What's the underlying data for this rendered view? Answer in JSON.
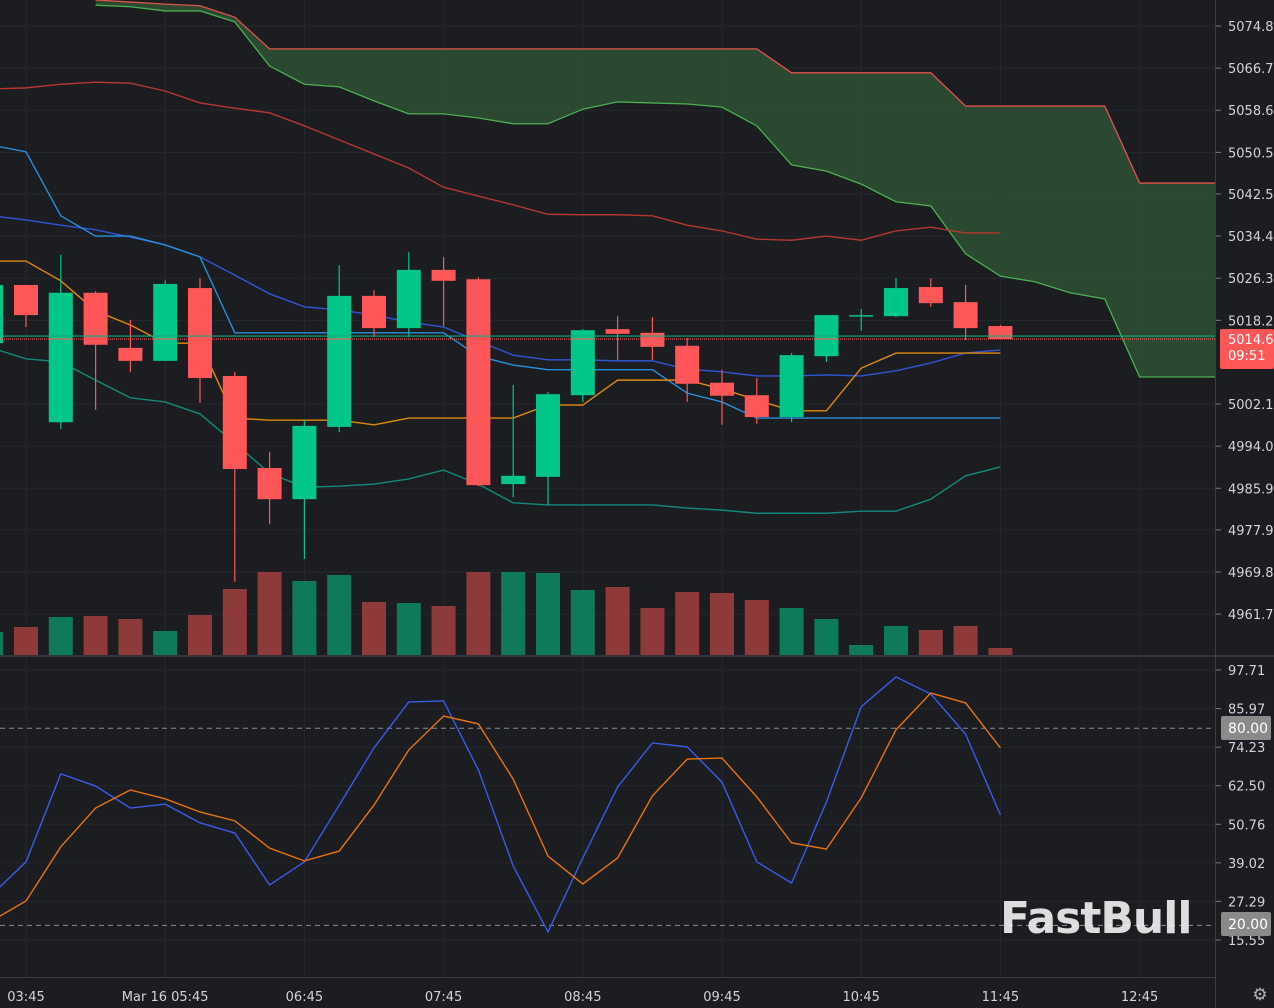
{
  "watermark": "FastBull",
  "settings_icon": "gear-icon",
  "colors": {
    "background": "#1c1d21",
    "up": "#00c787",
    "down": "#ff5757",
    "vol_up": "#0f7a5a",
    "vol_down": "#8f3a3a",
    "cloud": "#2e4f33",
    "stoch_k": "#3a5be8",
    "stoch_d": "#e8730f",
    "band_upper": "#b5372f",
    "band_lower": "#13897a",
    "band_mid": "#2e55d6",
    "kijun": "#2a8fdc",
    "tenkan": "#e08a0c"
  },
  "price_axis": {
    "ticks": [
      "5074.8",
      "5066.7",
      "5058.6",
      "5050.5",
      "5042.5",
      "5034.4",
      "5026.3",
      "5018.2",
      "5002.1",
      "4994.0",
      "4985.9",
      "4977.9",
      "4969.8",
      "4961.7"
    ],
    "tick_values": [
      5074.8,
      5066.7,
      5058.6,
      5050.5,
      5042.5,
      5034.4,
      5026.3,
      5018.2,
      5002.1,
      4994.0,
      4985.9,
      4977.9,
      4969.8,
      4961.7
    ],
    "current_price": "5014.6",
    "current_value": 5014.6,
    "countdown": "09:51"
  },
  "stoch_axis": {
    "ticks": [
      "97.71",
      "85.97",
      "74.23",
      "62.50",
      "50.76",
      "39.02",
      "27.29",
      "15.55"
    ],
    "tick_values": [
      97.71,
      85.97,
      74.23,
      62.5,
      50.76,
      39.02,
      27.29,
      15.55
    ],
    "upper_level": "80.00",
    "lower_level": "20.00"
  },
  "time_axis": [
    {
      "label": "03:45",
      "bar": 1
    },
    {
      "label": "Mar 16 05:45",
      "bar": 5
    },
    {
      "label": "06:45",
      "bar": 9
    },
    {
      "label": "07:45",
      "bar": 13
    },
    {
      "label": "08:45",
      "bar": 17
    },
    {
      "label": "09:45",
      "bar": 21
    },
    {
      "label": "10:45",
      "bar": 25
    },
    {
      "label": "11:45",
      "bar": 29
    },
    {
      "label": "12:45",
      "bar": 33
    }
  ],
  "chart_data": [
    {
      "type": "candlestick",
      "ohlc": [
        [
          5013.8,
          5025.9,
          5013.5,
          5025.0
        ],
        [
          5025.0,
          5025.0,
          5016.9,
          5019.2
        ],
        [
          4998.6,
          5030.8,
          4997.3,
          5023.5
        ],
        [
          5023.5,
          5023.8,
          5001.0,
          5013.5
        ],
        [
          5012.9,
          5018.3,
          5008.3,
          5010.4
        ],
        [
          5010.4,
          5025.9,
          5010.4,
          5025.2
        ],
        [
          5024.4,
          5026.3,
          5002.3,
          5007.1
        ],
        [
          5007.5,
          5008.3,
          4967.9,
          4989.6
        ],
        [
          4989.8,
          4992.9,
          4979.0,
          4983.8
        ],
        [
          4983.8,
          4999.0,
          4972.3,
          4997.9
        ],
        [
          4997.7,
          5028.8,
          4996.7,
          5022.9
        ],
        [
          5022.9,
          5024.0,
          5015.0,
          5016.7
        ],
        [
          5016.7,
          5031.3,
          5015.0,
          5027.9
        ],
        [
          5027.9,
          5030.4,
          5017.1,
          5025.8
        ],
        [
          5026.1,
          5026.5,
          4986.3,
          4986.5
        ],
        [
          4986.7,
          5005.8,
          4984.2,
          4988.3
        ],
        [
          4988.1,
          5004.4,
          4982.7,
          5004.0
        ],
        [
          5003.8,
          5016.5,
          5002.5,
          5016.3
        ],
        [
          5016.5,
          5019.0,
          5010.6,
          5015.6
        ],
        [
          5015.8,
          5018.8,
          5010.6,
          5013.1
        ],
        [
          5013.3,
          5014.8,
          5002.5,
          5006.0
        ],
        [
          5006.2,
          5008.7,
          4998.1,
          5003.7
        ],
        [
          5003.8,
          5007.1,
          4998.3,
          4999.6
        ],
        [
          4999.6,
          5011.9,
          4998.6,
          5011.5
        ],
        [
          5011.3,
          5019.2,
          5010.2,
          5019.2
        ],
        [
          5019.2,
          5020.4,
          5016.2,
          5019.2
        ],
        [
          5019.0,
          5026.3,
          5018.8,
          5024.4
        ],
        [
          5024.6,
          5026.3,
          5020.8,
          5021.5
        ],
        [
          5021.7,
          5025.0,
          5014.4,
          5016.7
        ],
        [
          5017.1,
          5017.3,
          5014.6,
          5014.6
        ]
      ],
      "volume_relative": [
        23,
        28,
        38,
        39,
        36,
        24,
        40,
        66,
        83,
        74,
        80,
        53,
        52,
        49,
        83,
        83,
        82,
        65,
        68,
        47,
        63,
        62,
        55,
        47,
        36,
        10,
        29,
        25,
        29,
        7
      ],
      "lines": {
        "band_upper": [
          5062.7,
          5062.9,
          5063.6,
          5064.0,
          5063.8,
          5062.3,
          5060.0,
          5059.0,
          5058.1,
          5055.6,
          5052.9,
          5050.2,
          5047.5,
          5043.8,
          5042.1,
          5040.4,
          5038.6,
          5038.5,
          5038.5,
          5038.3,
          5036.5,
          5035.4,
          5033.8,
          5033.6,
          5034.4,
          5033.6,
          5035.4,
          5036.1,
          5035.0,
          5035.0
        ],
        "band_lower": [
          5012.9,
          5010.8,
          5010.2,
          5006.7,
          5003.3,
          5002.5,
          5000.2,
          4994.6,
          4988.8,
          4986.1,
          4986.3,
          4986.7,
          4987.7,
          4989.4,
          4986.7,
          4983.1,
          4982.7,
          4982.7,
          4982.7,
          4982.7,
          4982.1,
          4981.7,
          4981.1,
          4981.1,
          4981.1,
          4981.5,
          4981.5,
          4983.8,
          4988.3,
          4990.0
        ],
        "band_mid": [
          5038.3,
          5037.5,
          5036.5,
          5035.6,
          5034.2,
          5032.7,
          5030.4,
          5026.9,
          5023.3,
          5020.8,
          5020.2,
          5019.2,
          5017.9,
          5016.9,
          5014.2,
          5011.5,
          5010.6,
          5010.6,
          5010.4,
          5010.4,
          5008.8,
          5008.3,
          5007.5,
          5007.5,
          5007.7,
          5007.5,
          5008.5,
          5010.0,
          5011.9,
          5012.5
        ],
        "kijun": [
          5051.9,
          5050.6,
          5038.3,
          5034.4,
          5034.4,
          5032.7,
          5030.4,
          5015.8,
          5015.8,
          5015.8,
          5015.8,
          5015.8,
          5015.8,
          5015.8,
          5011.3,
          5009.6,
          5008.7,
          5008.7,
          5008.7,
          5008.7,
          5004.2,
          5002.5,
          4999.4,
          4999.4,
          4999.4,
          4999.4,
          4999.4,
          4999.4,
          4999.4,
          4999.4
        ],
        "tenkan": [
          5029.6,
          5029.6,
          5025.8,
          5020.0,
          5017.3,
          5013.8,
          5013.8,
          4999.4,
          4999.0,
          4999.0,
          4999.0,
          4998.1,
          4999.4,
          4999.4,
          4999.4,
          4999.4,
          5001.9,
          5001.9,
          5006.7,
          5006.7,
          5006.7,
          5005.0,
          5002.9,
          5000.8,
          5000.8,
          5009.0,
          5011.9,
          5011.9,
          5011.9,
          5011.9
        ]
      },
      "cloud": {
        "start_bar": 3,
        "span_a": [
          5078.8,
          5078.5,
          5077.7,
          5077.7,
          5075.6,
          5067.1,
          5063.6,
          5063.1,
          5060.4,
          5057.9,
          5057.9,
          5057.1,
          5056.0,
          5056.0,
          5058.8,
          5060.2,
          5060.0,
          5059.8,
          5059.2,
          5055.6,
          5048.1,
          5046.9,
          5044.4,
          5041.0,
          5040.2,
          5031.0,
          5026.7,
          5025.6,
          5023.5,
          5022.3,
          5007.3,
          5007.3,
          5007.3
        ],
        "span_b": [
          5079.8,
          5079.4,
          5079.0,
          5078.7,
          5076.5,
          5070.4,
          5070.4,
          5070.4,
          5070.4,
          5070.4,
          5070.4,
          5070.4,
          5070.4,
          5070.4,
          5070.4,
          5070.4,
          5070.4,
          5070.4,
          5070.4,
          5070.4,
          5065.8,
          5065.8,
          5065.8,
          5065.8,
          5065.8,
          5059.4,
          5059.4,
          5059.4,
          5059.4,
          5059.4,
          5044.6,
          5044.6,
          5044.6
        ]
      },
      "ylim": [
        4958,
        5080
      ]
    },
    {
      "type": "line",
      "series": [
        {
          "key": "k",
          "values": [
            29.2,
            39.3,
            66.1,
            62.4,
            55.7,
            56.9,
            51.2,
            48.1,
            32.3,
            39.3,
            56.6,
            74.0,
            88.0,
            88.3,
            67.3,
            38.1,
            18.0,
            40.5,
            62.1,
            75.5,
            74.3,
            63.6,
            39.3,
            32.9,
            57.5,
            86.5,
            95.6,
            90.4,
            78.2,
            53.6
          ]
        },
        {
          "key": "d",
          "values": [
            21.3,
            27.4,
            43.9,
            55.7,
            61.2,
            58.5,
            54.5,
            51.8,
            43.5,
            39.6,
            42.6,
            56.6,
            73.4,
            83.7,
            81.3,
            64.5,
            41.1,
            32.6,
            40.5,
            59.4,
            70.6,
            70.9,
            59.1,
            45.1,
            43.2,
            58.8,
            79.5,
            90.7,
            87.7,
            74.0
          ]
        }
      ],
      "levels": [
        80,
        20
      ],
      "ylim": [
        11.6,
        101.7
      ]
    }
  ]
}
